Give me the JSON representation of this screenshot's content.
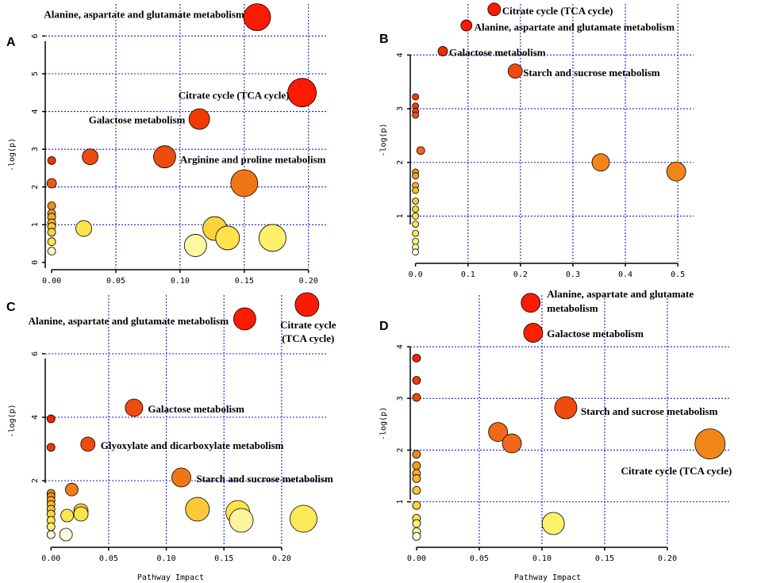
{
  "figure": {
    "xlabel": "Pathway Impact",
    "ylabel": "-log(p)"
  },
  "chart_data": [
    {
      "panel": "A",
      "type": "scatter",
      "xlabel": "",
      "ylabel": "-log(p)",
      "xticks": [
        "0.00",
        "0.05",
        "0.10",
        "0.15",
        "0.20"
      ],
      "yticks": [
        "0",
        "1",
        "2",
        "3",
        "4",
        "5",
        "6"
      ],
      "xlim": [
        -0.005,
        0.215
      ],
      "ylim": [
        -0.15,
        6.85
      ],
      "xgrid": [
        0.05,
        0.1,
        0.15,
        0.2
      ],
      "ygrid": [
        1,
        2,
        3,
        4,
        5,
        6
      ],
      "points": [
        {
          "x": 0.16,
          "y": 6.5,
          "r": 17,
          "color": "#ff1a00"
        },
        {
          "x": 0.195,
          "y": 4.5,
          "r": 18,
          "color": "#ff1a00"
        },
        {
          "x": 0.115,
          "y": 3.8,
          "r": 13,
          "color": "#f23a00"
        },
        {
          "x": 0.03,
          "y": 2.8,
          "r": 10,
          "color": "#ec4c0e"
        },
        {
          "x": 0.088,
          "y": 2.8,
          "r": 14,
          "color": "#ec4c0e"
        },
        {
          "x": 0.0,
          "y": 2.7,
          "r": 5,
          "color": "#ee3a0a"
        },
        {
          "x": 0.0,
          "y": 2.1,
          "r": 6,
          "color": "#ee5a12"
        },
        {
          "x": 0.15,
          "y": 2.1,
          "r": 17,
          "color": "#f17516"
        },
        {
          "x": 0.0,
          "y": 1.5,
          "r": 5,
          "color": "#f08c1c"
        },
        {
          "x": 0.0,
          "y": 1.3,
          "r": 5,
          "color": "#f59a1e"
        },
        {
          "x": 0.0,
          "y": 1.2,
          "r": 5,
          "color": "#f7a825"
        },
        {
          "x": 0.0,
          "y": 1.05,
          "r": 5,
          "color": "#f8b82c"
        },
        {
          "x": 0.0,
          "y": 0.95,
          "r": 5,
          "color": "#fac63a"
        },
        {
          "x": 0.0,
          "y": 0.8,
          "r": 5,
          "color": "#fbd43c"
        },
        {
          "x": 0.0,
          "y": 0.55,
          "r": 5,
          "color": "#fde44a"
        },
        {
          "x": 0.0,
          "y": 0.3,
          "r": 5,
          "color": "#fff7c8"
        },
        {
          "x": 0.025,
          "y": 0.9,
          "r": 10,
          "color": "#fde44a"
        },
        {
          "x": 0.127,
          "y": 0.9,
          "r": 15,
          "color": "#fbd43c"
        },
        {
          "x": 0.137,
          "y": 0.65,
          "r": 15,
          "color": "#fde44a"
        },
        {
          "x": 0.172,
          "y": 0.65,
          "r": 17,
          "color": "#fef06a"
        },
        {
          "x": 0.112,
          "y": 0.45,
          "r": 14,
          "color": "#fff6a0"
        }
      ],
      "annotations": [
        {
          "text": "Alanine, aspartate and glutamate metabolism",
          "anchor": "end",
          "x": 0.15,
          "y": 6.55
        },
        {
          "text": "Citrate cycle (TCA cycle)",
          "anchor": "end",
          "x": 0.185,
          "y": 4.4
        },
        {
          "text": "Galactose metabolism",
          "anchor": "end",
          "x": 0.104,
          "y": 3.75
        },
        {
          "text": "Arginine and proline metabolism",
          "anchor": "start",
          "x": 0.1,
          "y": 2.7
        }
      ]
    },
    {
      "panel": "B",
      "type": "scatter",
      "xlabel": "",
      "ylabel": "-log(p)",
      "xticks": [
        "0.0",
        "0.1",
        "0.2",
        "0.3",
        "0.4",
        "0.5"
      ],
      "yticks": [
        "1",
        "2",
        "3",
        "4"
      ],
      "xlim": [
        -0.01,
        0.53
      ],
      "ylim": [
        0.15,
        4.95
      ],
      "xgrid": [
        0.1,
        0.2,
        0.3,
        0.4,
        0.5
      ],
      "ygrid": [
        1,
        2,
        3,
        4
      ],
      "points": [
        {
          "x": 0.15,
          "y": 4.85,
          "r": 8,
          "color": "#ff1a00"
        },
        {
          "x": 0.097,
          "y": 4.55,
          "r": 7,
          "color": "#ff1a00"
        },
        {
          "x": 0.052,
          "y": 4.07,
          "r": 6,
          "color": "#f02a00"
        },
        {
          "x": 0.19,
          "y": 3.7,
          "r": 9,
          "color": "#f04a0c"
        },
        {
          "x": 0.0,
          "y": 3.22,
          "r": 4,
          "color": "#ef3a08"
        },
        {
          "x": 0.0,
          "y": 3.05,
          "r": 4,
          "color": "#ef3a08"
        },
        {
          "x": 0.0,
          "y": 2.95,
          "r": 4,
          "color": "#ef4508"
        },
        {
          "x": 0.0,
          "y": 2.88,
          "r": 4,
          "color": "#f05010"
        },
        {
          "x": 0.01,
          "y": 2.22,
          "r": 5,
          "color": "#f06818"
        },
        {
          "x": 0.353,
          "y": 2.0,
          "r": 11,
          "color": "#f28418"
        },
        {
          "x": 0.497,
          "y": 1.83,
          "r": 12,
          "color": "#f28418"
        },
        {
          "x": 0.0,
          "y": 1.82,
          "r": 4,
          "color": "#f39020"
        },
        {
          "x": 0.0,
          "y": 1.75,
          "r": 4,
          "color": "#f59e22"
        },
        {
          "x": 0.0,
          "y": 1.57,
          "r": 4,
          "color": "#f8ae2a"
        },
        {
          "x": 0.0,
          "y": 1.48,
          "r": 4,
          "color": "#f9bb30"
        },
        {
          "x": 0.0,
          "y": 1.28,
          "r": 4,
          "color": "#fbc83a"
        },
        {
          "x": 0.0,
          "y": 1.13,
          "r": 4,
          "color": "#fcd43e"
        },
        {
          "x": 0.0,
          "y": 1.0,
          "r": 4,
          "color": "#fde048"
        },
        {
          "x": 0.0,
          "y": 0.85,
          "r": 4,
          "color": "#fde552"
        },
        {
          "x": 0.0,
          "y": 0.68,
          "r": 4,
          "color": "#feec66"
        },
        {
          "x": 0.0,
          "y": 0.53,
          "r": 4,
          "color": "#fff186"
        },
        {
          "x": 0.0,
          "y": 0.42,
          "r": 4,
          "color": "#fff6a8"
        },
        {
          "x": 0.0,
          "y": 0.33,
          "r": 4,
          "color": "#fffbe0"
        }
      ],
      "annotations": [
        {
          "text": "Citrate cycle (TCA cycle)",
          "anchor": "start",
          "x": 0.165,
          "y": 4.8
        },
        {
          "text": "Alanine, aspartate and glutamate metabolism",
          "anchor": "start",
          "x": 0.112,
          "y": 4.5
        },
        {
          "text": "Galactose metabolism",
          "anchor": "start",
          "x": 0.064,
          "y": 4.03
        },
        {
          "text": "Starch and sucrose metabolism",
          "anchor": "start",
          "x": 0.205,
          "y": 3.65
        }
      ]
    },
    {
      "panel": "C",
      "type": "scatter",
      "xlabel": "",
      "ylabel": "-log(p)",
      "xticks": [
        "0.00",
        "0.05",
        "0.10",
        "0.15",
        "0.20"
      ],
      "yticks": [
        "2",
        "4",
        "6"
      ],
      "xlim": [
        -0.005,
        0.24
      ],
      "ylim": [
        -0.05,
        7.85
      ],
      "xgrid": [
        0.05,
        0.1,
        0.15,
        0.2
      ],
      "ygrid": [
        2,
        4,
        6
      ],
      "points": [
        {
          "x": 0.222,
          "y": 7.55,
          "r": 15,
          "color": "#ff1a00"
        },
        {
          "x": 0.168,
          "y": 7.1,
          "r": 14,
          "color": "#ff1a00"
        },
        {
          "x": 0.072,
          "y": 4.3,
          "r": 11,
          "color": "#f04a0c"
        },
        {
          "x": 0.0,
          "y": 3.95,
          "r": 5,
          "color": "#ff2000"
        },
        {
          "x": 0.032,
          "y": 3.15,
          "r": 9,
          "color": "#f04a0c"
        },
        {
          "x": 0.0,
          "y": 3.05,
          "r": 5,
          "color": "#ee3a0a"
        },
        {
          "x": 0.113,
          "y": 2.1,
          "r": 12,
          "color": "#f17516"
        },
        {
          "x": 0.018,
          "y": 1.72,
          "r": 8,
          "color": "#f07c1a"
        },
        {
          "x": 0.0,
          "y": 1.6,
          "r": 5,
          "color": "#f08c1c"
        },
        {
          "x": 0.0,
          "y": 1.5,
          "r": 5,
          "color": "#f59a1e"
        },
        {
          "x": 0.0,
          "y": 1.38,
          "r": 5,
          "color": "#f7a825"
        },
        {
          "x": 0.0,
          "y": 1.25,
          "r": 5,
          "color": "#f8b82c"
        },
        {
          "x": 0.0,
          "y": 1.1,
          "r": 5,
          "color": "#fac63a"
        },
        {
          "x": 0.0,
          "y": 0.95,
          "r": 5,
          "color": "#fbd43c"
        },
        {
          "x": 0.0,
          "y": 0.75,
          "r": 5,
          "color": "#fde44a"
        },
        {
          "x": 0.0,
          "y": 0.55,
          "r": 5,
          "color": "#feee7a"
        },
        {
          "x": 0.0,
          "y": 0.3,
          "r": 5,
          "color": "#fffbe0"
        },
        {
          "x": 0.026,
          "y": 1.05,
          "r": 9,
          "color": "#fbc83a"
        },
        {
          "x": 0.026,
          "y": 0.95,
          "r": 9,
          "color": "#fde44a"
        },
        {
          "x": 0.014,
          "y": 0.9,
          "r": 8,
          "color": "#fde44a"
        },
        {
          "x": 0.013,
          "y": 0.3,
          "r": 8,
          "color": "#fffbe0"
        },
        {
          "x": 0.127,
          "y": 1.1,
          "r": 15,
          "color": "#fbc83a"
        },
        {
          "x": 0.162,
          "y": 1.0,
          "r": 15,
          "color": "#fde44a"
        },
        {
          "x": 0.165,
          "y": 0.75,
          "r": 15,
          "color": "#fff3a0"
        },
        {
          "x": 0.219,
          "y": 0.8,
          "r": 17,
          "color": "#fde856"
        }
      ],
      "annotations": [
        {
          "text": "Alanine, aspartate and glutamate metabolism",
          "anchor": "end",
          "x": 0.154,
          "y": 7.0
        },
        {
          "text": "Citrate cycle",
          "anchor": "middle",
          "x": 0.223,
          "y": 6.88
        },
        {
          "text": "(TCA cycle)",
          "anchor": "middle",
          "x": 0.223,
          "y": 6.45
        },
        {
          "text": "Galactose metabolism",
          "anchor": "start",
          "x": 0.084,
          "y": 4.22
        },
        {
          "text": "Glyoxylate and dicarboxylate metabolism",
          "anchor": "start",
          "x": 0.043,
          "y": 3.08
        },
        {
          "text": "Starch and sucrose metabolism",
          "anchor": "start",
          "x": 0.126,
          "y": 2.02
        }
      ]
    },
    {
      "panel": "D",
      "type": "scatter",
      "xlabel": "Pathway Impact",
      "ylabel": "-log(p)",
      "xticks": [
        "0.00",
        "0.05",
        "0.10",
        "0.15",
        "0.20"
      ],
      "yticks": [
        "1",
        "2",
        "3",
        "4"
      ],
      "xlim": [
        -0.005,
        0.25
      ],
      "ylim": [
        0.15,
        5.0
      ],
      "xgrid": [
        0.05,
        0.1,
        0.15,
        0.2
      ],
      "ygrid": [
        1,
        2,
        3,
        4
      ],
      "points": [
        {
          "x": 0.091,
          "y": 4.85,
          "r": 12,
          "color": "#ff1a00"
        },
        {
          "x": 0.093,
          "y": 4.27,
          "r": 12,
          "color": "#ff2000"
        },
        {
          "x": 0.0,
          "y": 3.78,
          "r": 5,
          "color": "#ff2000"
        },
        {
          "x": 0.0,
          "y": 3.35,
          "r": 5,
          "color": "#ee3a0a"
        },
        {
          "x": 0.0,
          "y": 3.02,
          "r": 5,
          "color": "#f04a0c"
        },
        {
          "x": 0.119,
          "y": 2.82,
          "r": 14,
          "color": "#f04a0c"
        },
        {
          "x": 0.065,
          "y": 2.35,
          "r": 12,
          "color": "#f06818"
        },
        {
          "x": 0.076,
          "y": 2.13,
          "r": 12,
          "color": "#f06818"
        },
        {
          "x": 0.234,
          "y": 2.12,
          "r": 19,
          "color": "#f08618"
        },
        {
          "x": 0.0,
          "y": 1.92,
          "r": 5,
          "color": "#f08c1c"
        },
        {
          "x": 0.0,
          "y": 1.7,
          "r": 5,
          "color": "#f59a1e"
        },
        {
          "x": 0.0,
          "y": 1.55,
          "r": 5,
          "color": "#f7a825"
        },
        {
          "x": 0.0,
          "y": 1.45,
          "r": 5,
          "color": "#f8b82c"
        },
        {
          "x": 0.0,
          "y": 1.22,
          "r": 5,
          "color": "#fac63a"
        },
        {
          "x": 0.0,
          "y": 0.93,
          "r": 5,
          "color": "#fbd43c"
        },
        {
          "x": 0.0,
          "y": 0.68,
          "r": 5,
          "color": "#fde44a"
        },
        {
          "x": 0.0,
          "y": 0.58,
          "r": 5,
          "color": "#feee7a"
        },
        {
          "x": 0.0,
          "y": 0.42,
          "r": 5,
          "color": "#fff6a8"
        },
        {
          "x": 0.0,
          "y": 0.33,
          "r": 5,
          "color": "#fffbe0"
        },
        {
          "x": 0.109,
          "y": 0.58,
          "r": 14,
          "color": "#fef26a"
        }
      ],
      "annotations": [
        {
          "text": "Alanine, aspartate and glutamate",
          "anchor": "start",
          "x": 0.104,
          "y": 5.0
        },
        {
          "text": "metabolism",
          "anchor": "start",
          "x": 0.104,
          "y": 4.72
        },
        {
          "text": "Galactose metabolism",
          "anchor": "start",
          "x": 0.104,
          "y": 4.23
        },
        {
          "text": "Starch and sucrose metabolism",
          "anchor": "start",
          "x": 0.131,
          "y": 2.73
        },
        {
          "text": "Citrate cycle (TCA cycle)",
          "anchor": "start",
          "x": 0.163,
          "y": 1.58
        }
      ]
    }
  ]
}
